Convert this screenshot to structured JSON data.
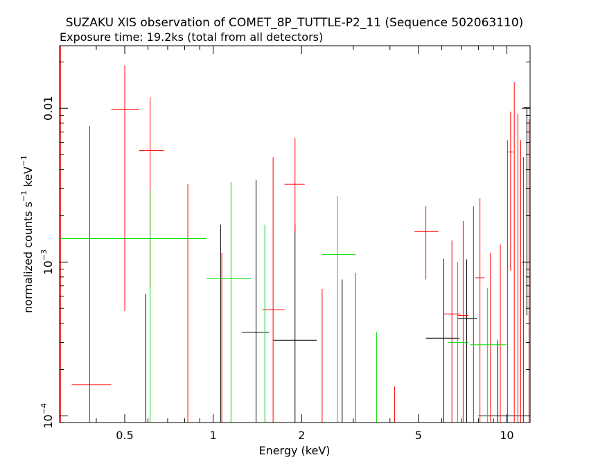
{
  "chart_data": {
    "type": "scatter",
    "title": "SUZAKU XIS observation of COMET_8P_TUTTLE-P2_11 (Sequence 502063110)",
    "subtitle": "Exposure time: 19.2ks (total from all detectors)",
    "xlabel": "Energy (keV)",
    "ylabel": {
      "main": "normalized counts s",
      "sup1": "−1",
      "mid": " keV",
      "sup2": "−1"
    },
    "x_scale": "log",
    "y_scale": "log",
    "xlim": [
      0.3,
      12.0
    ],
    "ylim": [
      9.05e-05,
      0.0255
    ],
    "x_ticks": [
      {
        "value": 0.5,
        "label": "0.5"
      },
      {
        "value": 1,
        "label": "1"
      },
      {
        "value": 2,
        "label": "2"
      },
      {
        "value": 5,
        "label": "5"
      },
      {
        "value": 10,
        "label": "10"
      }
    ],
    "y_ticks": [
      {
        "value": 0.0001,
        "label": "10",
        "sup": "−4"
      },
      {
        "value": 0.001,
        "label": "10",
        "sup": "−3"
      },
      {
        "value": 0.01,
        "label": "0.01",
        "sup": ""
      }
    ],
    "grid": false,
    "legend": "none",
    "series": [
      {
        "color": "#000000",
        "points": [
          {
            "x": 0.59,
            "xlo": 0.59,
            "xhi": 0.59,
            "y": 0.0001,
            "ylo": 9.05e-05,
            "yhi": 0.00062
          },
          {
            "x": 1.06,
            "xlo": 1.06,
            "xhi": 1.06,
            "y": 0.0001,
            "ylo": 9.05e-05,
            "yhi": 0.00175
          },
          {
            "x": 1.4,
            "xlo": 1.25,
            "xhi": 1.55,
            "y": 0.00035,
            "ylo": 9.05e-05,
            "yhi": 0.0034
          },
          {
            "x": 1.9,
            "xlo": 1.6,
            "xhi": 2.25,
            "y": 0.00031,
            "ylo": 9.05e-05,
            "yhi": 0.00175
          },
          {
            "x": 2.75,
            "xlo": 2.75,
            "xhi": 2.75,
            "y": 0.0001,
            "ylo": 9.05e-05,
            "yhi": 0.00077
          },
          {
            "x": 6.1,
            "xlo": 5.3,
            "xhi": 6.9,
            "y": 0.00032,
            "ylo": 9.05e-05,
            "yhi": 0.00105
          },
          {
            "x": 7.3,
            "xlo": 6.8,
            "xhi": 7.9,
            "y": 0.00043,
            "ylo": 9.05e-05,
            "yhi": 0.00104
          },
          {
            "x": 9.3,
            "xlo": 8.0,
            "xhi": 11.3,
            "y": 0.0001,
            "ylo": 9.05e-05,
            "yhi": 0.00031
          },
          {
            "x": 11.7,
            "xlo": 11.4,
            "xhi": 12.0,
            "y": 0.0101,
            "ylo": 0.00045,
            "yhi": 0.0101
          }
        ]
      },
      {
        "color": "#ff0000",
        "points": [
          {
            "x": 0.302,
            "xlo": 0.3,
            "xhi": 0.305,
            "y": 0.02,
            "ylo": 9.05e-05,
            "yhi": 0.0255
          },
          {
            "x": 0.38,
            "xlo": 0.33,
            "xhi": 0.45,
            "y": 0.000159,
            "ylo": 9.05e-05,
            "yhi": 0.00765
          },
          {
            "x": 0.5,
            "xlo": 0.45,
            "xhi": 0.56,
            "y": 0.0098,
            "ylo": 0.00048,
            "yhi": 0.019
          },
          {
            "x": 0.61,
            "xlo": 0.56,
            "xhi": 0.68,
            "y": 0.0053,
            "ylo": 0.00069,
            "yhi": 0.0118
          },
          {
            "x": 0.82,
            "xlo": 0.82,
            "xhi": 0.82,
            "y": 0.0001,
            "ylo": 9.05e-05,
            "yhi": 0.0032
          },
          {
            "x": 1.07,
            "xlo": 1.07,
            "xhi": 1.07,
            "y": 0.0001,
            "ylo": 9.05e-05,
            "yhi": 0.00115
          },
          {
            "x": 1.6,
            "xlo": 1.47,
            "xhi": 1.75,
            "y": 0.00049,
            "ylo": 9.05e-05,
            "yhi": 0.0048
          },
          {
            "x": 1.9,
            "xlo": 1.75,
            "xhi": 2.05,
            "y": 0.0032,
            "ylo": 0.00155,
            "yhi": 0.0064
          },
          {
            "x": 2.35,
            "xlo": 2.35,
            "xhi": 2.35,
            "y": 0.0001,
            "ylo": 9.05e-05,
            "yhi": 0.00067
          },
          {
            "x": 3.05,
            "xlo": 3.05,
            "xhi": 3.05,
            "y": 0.0001,
            "ylo": 9.05e-05,
            "yhi": 0.00085
          },
          {
            "x": 4.15,
            "xlo": 4.15,
            "xhi": 4.15,
            "y": 0.0001,
            "ylo": 9.05e-05,
            "yhi": 0.000155
          },
          {
            "x": 5.3,
            "xlo": 4.85,
            "xhi": 5.85,
            "y": 0.00158,
            "ylo": 0.00077,
            "yhi": 0.0023
          },
          {
            "x": 6.5,
            "xlo": 6.1,
            "xhi": 6.95,
            "y": 0.00046,
            "ylo": 9.05e-05,
            "yhi": 0.00138
          },
          {
            "x": 7.1,
            "xlo": 6.8,
            "xhi": 7.4,
            "y": 0.00045,
            "ylo": 9.05e-05,
            "yhi": 0.00185
          },
          {
            "x": 7.7,
            "xlo": 7.7,
            "xhi": 7.7,
            "y": 0.0001,
            "ylo": 9.05e-05,
            "yhi": 0.0023
          },
          {
            "x": 8.1,
            "xlo": 7.8,
            "xhi": 8.4,
            "y": 0.00079,
            "ylo": 9.05e-05,
            "yhi": 0.0026
          },
          {
            "x": 8.8,
            "xlo": 8.8,
            "xhi": 8.8,
            "y": 0.0001,
            "ylo": 9.05e-05,
            "yhi": 0.00115
          },
          {
            "x": 9.5,
            "xlo": 9.5,
            "xhi": 9.5,
            "y": 0.0001,
            "ylo": 9.05e-05,
            "yhi": 0.0013
          },
          {
            "x": 10.05,
            "xlo": 10.05,
            "xhi": 10.05,
            "y": 0.0028,
            "ylo": 9.05e-05,
            "yhi": 0.0062
          },
          {
            "x": 10.3,
            "xlo": 10.1,
            "xhi": 10.5,
            "y": 0.0052,
            "ylo": 0.00088,
            "yhi": 0.0095
          },
          {
            "x": 10.6,
            "xlo": 10.6,
            "xhi": 10.6,
            "y": 0.0092,
            "ylo": 9.05e-05,
            "yhi": 0.0148
          },
          {
            "x": 10.9,
            "xlo": 10.9,
            "xhi": 10.9,
            "y": 0.0001,
            "ylo": 9.05e-05,
            "yhi": 0.0092
          },
          {
            "x": 11.15,
            "xlo": 11.15,
            "xhi": 11.15,
            "y": 0.0001,
            "ylo": 9.05e-05,
            "yhi": 0.0062
          },
          {
            "x": 11.4,
            "xlo": 11.4,
            "xhi": 11.4,
            "y": 0.0001,
            "ylo": 9.05e-05,
            "yhi": 0.0048
          },
          {
            "x": 11.9,
            "xlo": 11.9,
            "xhi": 11.9,
            "y": 0.0057,
            "ylo": 9.05e-05,
            "yhi": 0.0085
          }
        ]
      },
      {
        "color": "#00dd00",
        "points": [
          {
            "x": 0.61,
            "xlo": 0.3,
            "xhi": 0.95,
            "y": 0.00142,
            "ylo": 9.05e-05,
            "yhi": 0.0029
          },
          {
            "x": 1.15,
            "xlo": 0.95,
            "xhi": 1.35,
            "y": 0.00078,
            "ylo": 9.05e-05,
            "yhi": 0.0033
          },
          {
            "x": 1.5,
            "xlo": 1.5,
            "xhi": 1.5,
            "y": 0.0001,
            "ylo": 9.05e-05,
            "yhi": 0.00175
          },
          {
            "x": 2.65,
            "xlo": 2.35,
            "xhi": 3.05,
            "y": 0.00112,
            "ylo": 9.05e-05,
            "yhi": 0.0027
          },
          {
            "x": 3.6,
            "xlo": 3.6,
            "xhi": 3.6,
            "y": 0.0001,
            "ylo": 9.05e-05,
            "yhi": 0.00035
          },
          {
            "x": 6.8,
            "xlo": 6.3,
            "xhi": 7.4,
            "y": 0.0003,
            "ylo": 9.05e-05,
            "yhi": 0.001
          },
          {
            "x": 8.6,
            "xlo": 7.5,
            "xhi": 9.95,
            "y": 0.00029,
            "ylo": 9.05e-05,
            "yhi": 0.00068
          }
        ]
      }
    ]
  }
}
